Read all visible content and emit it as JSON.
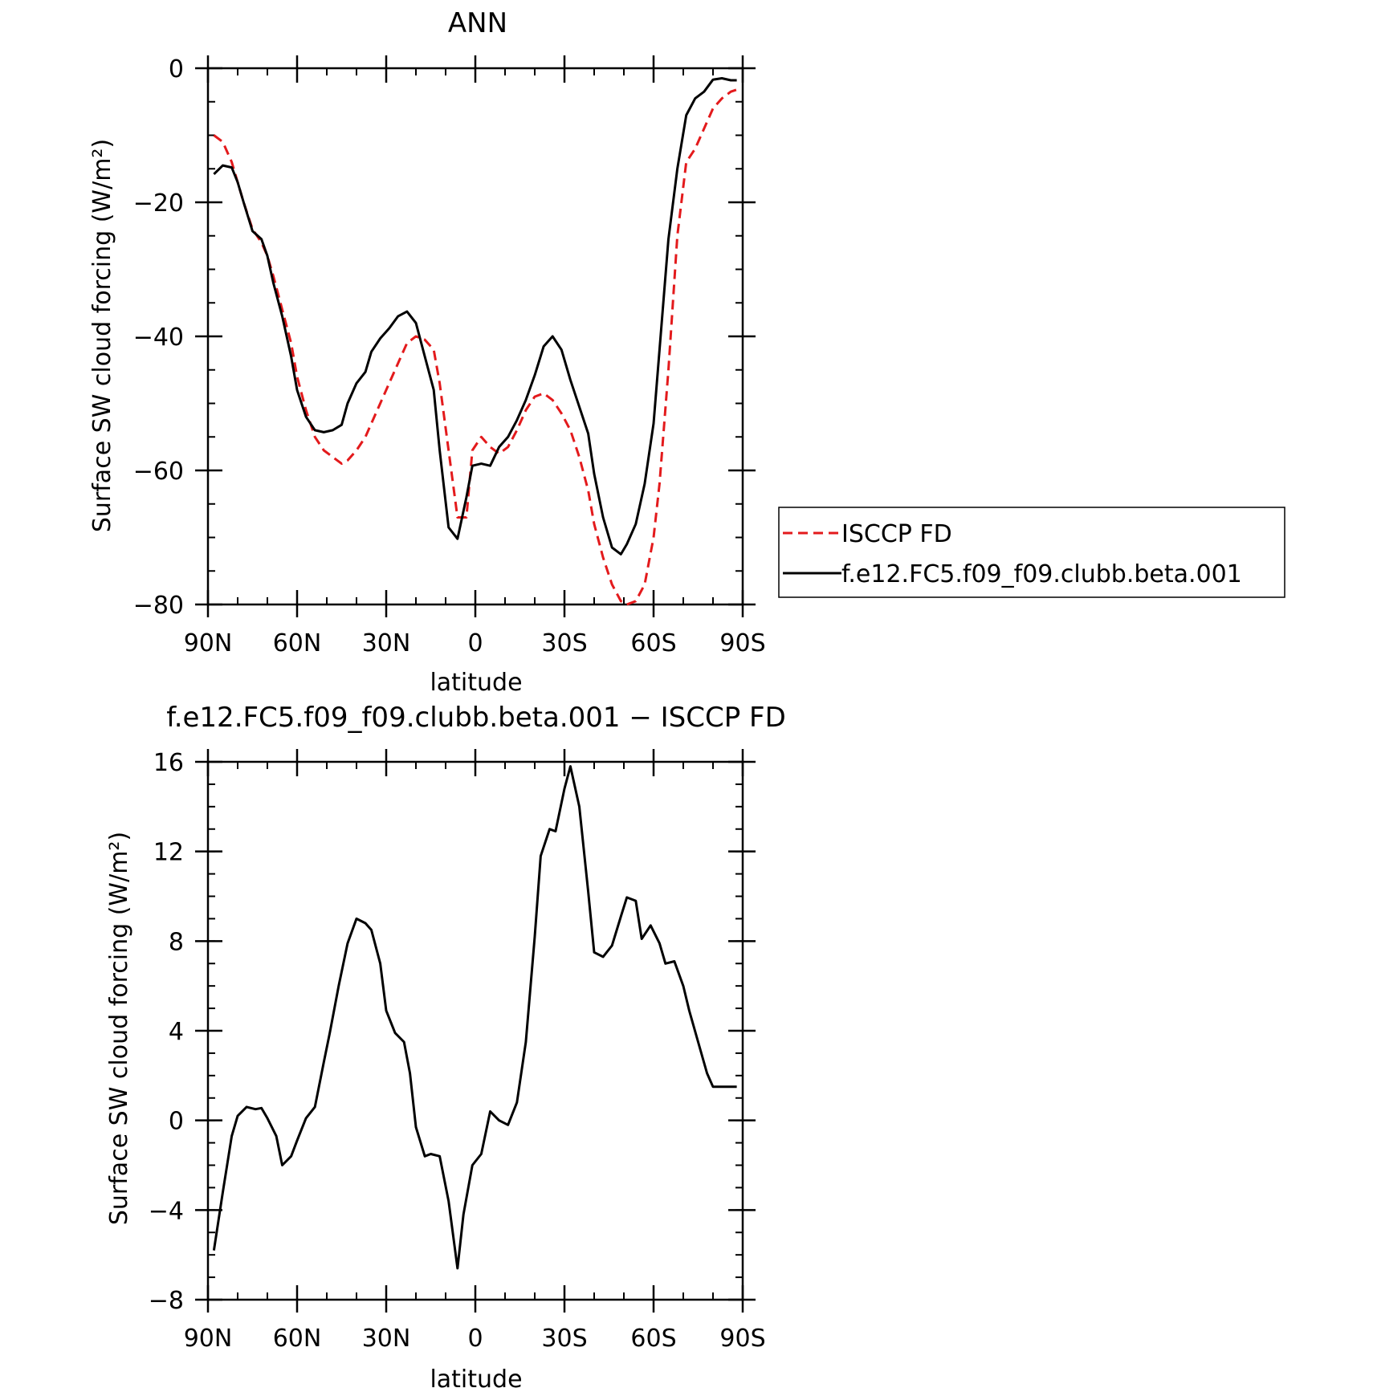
{
  "chart_data": [
    {
      "type": "line",
      "title": "ANN",
      "xlabel": "latitude",
      "ylabel": "Surface SW cloud forcing (W/m²)",
      "xlim": [
        90,
        -90
      ],
      "ylim": [
        -80,
        0
      ],
      "x_tick_labels": [
        "90N",
        "60N",
        "30N",
        "0",
        "30S",
        "60S",
        "90S"
      ],
      "x_tick_values": [
        90,
        60,
        30,
        0,
        -30,
        -60,
        -90
      ],
      "y_tick_values": [
        0,
        -20,
        -40,
        -60,
        -80
      ],
      "y_tick_labels": [
        "0",
        "−20",
        "−40",
        "−60",
        "−80"
      ],
      "legend_position": "right",
      "series": [
        {
          "name": "ISCCP FD",
          "color": "#e31a1c",
          "dashed": true,
          "x": [
            88,
            85,
            82,
            80,
            78,
            75,
            72,
            70,
            68,
            65,
            62,
            60,
            57,
            54,
            51,
            48,
            45,
            43,
            40,
            37,
            35,
            32,
            29,
            26,
            23,
            20,
            17,
            14,
            12,
            9,
            6,
            3,
            1,
            -2,
            -5,
            -8,
            -11,
            -14,
            -17,
            -20,
            -23,
            -26,
            -29,
            -32,
            -35,
            -38,
            -40,
            -43,
            -46,
            -49,
            -51,
            -54,
            -57,
            -60,
            -62,
            -65,
            -68,
            -71,
            -74,
            -77,
            -80,
            -83,
            -86,
            -88
          ],
          "y": [
            -10,
            -11,
            -14,
            -17,
            -20,
            -24,
            -26,
            -28,
            -31,
            -36,
            -41,
            -46,
            -51,
            -55,
            -57,
            -58,
            -59,
            -58.5,
            -57,
            -55,
            -53,
            -50,
            -47,
            -44,
            -41,
            -40,
            -40.5,
            -42,
            -47,
            -57,
            -67,
            -67,
            -57,
            -55,
            -56.5,
            -57.5,
            -56.5,
            -54,
            -51,
            -49,
            -48.5,
            -49.5,
            -51.5,
            -54,
            -58,
            -63,
            -68,
            -73,
            -77,
            -79.5,
            -80,
            -79.5,
            -77,
            -70,
            -62,
            -45,
            -25,
            -14,
            -12,
            -9,
            -6,
            -4.5,
            -3.5,
            -3.2
          ]
        },
        {
          "name": "f.e12.FC5.f09_f09.clubb.beta.001",
          "color": "#000000",
          "dashed": false,
          "x": [
            88,
            85,
            82,
            80,
            78,
            75,
            72,
            70,
            68,
            65,
            62,
            60,
            57,
            54,
            51,
            48,
            45,
            43,
            40,
            37,
            35,
            32,
            29,
            26,
            23,
            20,
            17,
            14,
            12,
            9,
            6,
            3,
            1,
            -2,
            -5,
            -8,
            -11,
            -14,
            -17,
            -20,
            -23,
            -26,
            -29,
            -32,
            -35,
            -38,
            -40,
            -43,
            -46,
            -49,
            -51,
            -54,
            -57,
            -60,
            -62,
            -65,
            -68,
            -71,
            -74,
            -77,
            -80,
            -83,
            -86,
            -88
          ],
          "y": [
            -15.8,
            -14.5,
            -14.8,
            -17,
            -20,
            -24.3,
            -25.5,
            -28,
            -32,
            -37,
            -43,
            -48,
            -52,
            -54,
            -54.3,
            -54,
            -53.2,
            -50,
            -47,
            -45.3,
            -42.3,
            -40.3,
            -38.8,
            -37,
            -36.3,
            -38,
            -43,
            -48,
            -57,
            -68.5,
            -70.2,
            -64,
            -59.3,
            -59,
            -59.3,
            -56.5,
            -55,
            -52.5,
            -49.5,
            -45.8,
            -41.5,
            -40,
            -42,
            -46.5,
            -50.5,
            -54.5,
            -60.5,
            -67,
            -71.5,
            -72.5,
            -71,
            -68,
            -62,
            -53,
            -42,
            -25.5,
            -15,
            -7,
            -4.5,
            -3.5,
            -1.7,
            -1.5,
            -1.8,
            -1.8
          ]
        }
      ]
    },
    {
      "type": "line",
      "title": "f.e12.FC5.f09_f09.clubb.beta.001 − ISCCP FD",
      "xlabel": "latitude",
      "ylabel": "Surface SW cloud forcing (W/m²)",
      "xlim": [
        90,
        -90
      ],
      "ylim": [
        -8,
        16
      ],
      "x_tick_labels": [
        "90N",
        "60N",
        "30N",
        "0",
        "30S",
        "60S",
        "90S"
      ],
      "x_tick_values": [
        90,
        60,
        30,
        0,
        -30,
        -60,
        -90
      ],
      "y_tick_values": [
        16,
        12,
        8,
        4,
        0,
        -4,
        -8
      ],
      "y_tick_labels": [
        "16",
        "12",
        "8",
        "4",
        "0",
        "−4",
        "−8"
      ],
      "series": [
        {
          "color": "#000000",
          "dashed": false,
          "x": [
            88,
            85,
            82,
            80,
            77,
            74,
            72,
            70,
            67,
            65,
            62,
            60,
            57,
            54,
            51,
            49,
            46,
            43,
            40,
            37,
            35,
            32,
            30,
            27,
            24,
            22,
            20,
            17,
            15,
            12,
            9,
            6,
            4,
            1,
            -2,
            -5,
            -8,
            -11,
            -14,
            -17,
            -20,
            -22,
            -25,
            -27,
            -30,
            -32,
            -35,
            -38,
            -40,
            -43,
            -46,
            -49,
            -51,
            -54,
            -56,
            -59,
            -62,
            -64,
            -67,
            -70,
            -72,
            -75,
            -78,
            -80,
            -82,
            -85,
            -88
          ],
          "y": [
            -5.8,
            -3.2,
            -0.7,
            0.2,
            0.6,
            0.5,
            0.55,
            0.1,
            -0.7,
            -2.0,
            -1.6,
            -0.9,
            0.1,
            0.6,
            2.6,
            3.9,
            6.0,
            7.9,
            9.0,
            8.8,
            8.5,
            7.0,
            4.9,
            3.9,
            3.5,
            2.1,
            -0.3,
            -1.6,
            -1.5,
            -1.6,
            -3.6,
            -6.6,
            -4.2,
            -2.0,
            -1.5,
            0.4,
            0.0,
            -0.2,
            0.8,
            3.5,
            8.2,
            11.8,
            13.0,
            12.9,
            14.8,
            15.8,
            14.0,
            10.2,
            7.5,
            7.3,
            7.8,
            9.1,
            9.95,
            9.8,
            8.1,
            8.7,
            7.9,
            7.0,
            7.1,
            6.0,
            4.9,
            3.5,
            2.1,
            1.5,
            1.5,
            1.5,
            1.5
          ]
        }
      ]
    }
  ]
}
